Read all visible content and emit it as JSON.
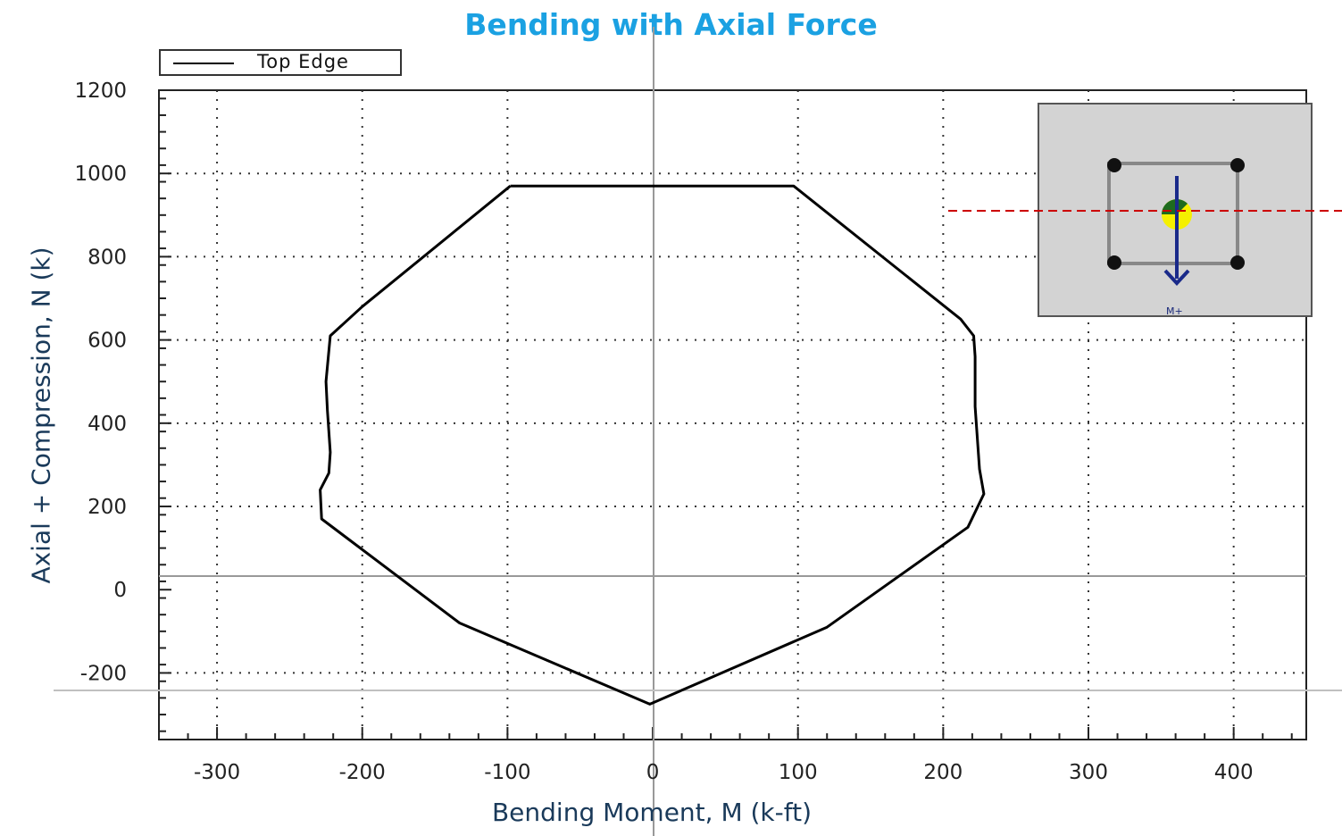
{
  "chart_data": {
    "type": "line",
    "title": "Bending with Axial Force",
    "xlabel": "Bending Moment, M (k-ft)",
    "ylabel": "Axial + Compression, N (k)",
    "xlim": [
      -340,
      450
    ],
    "ylim": [
      -360,
      1200
    ],
    "x_ticks": [
      -300,
      -200,
      -100,
      0,
      100,
      200,
      300,
      400
    ],
    "y_ticks": [
      -200,
      0,
      200,
      400,
      600,
      800,
      1000,
      1200
    ],
    "grid": true,
    "legend": {
      "placement": "top-left",
      "entries": [
        "Top Edge"
      ]
    },
    "series": [
      {
        "name": "Top Edge",
        "color": "#000000",
        "x": [
          -98,
          -200,
          -222,
          -225,
          -224,
          -222,
          -223,
          -229,
          -228,
          -133,
          -2,
          120,
          217,
          228,
          225,
          222,
          222,
          221,
          212,
          97,
          -98
        ],
        "y": [
          970,
          680,
          610,
          500,
          430,
          330,
          280,
          240,
          170,
          -80,
          -275,
          -90,
          150,
          230,
          290,
          440,
          560,
          610,
          650,
          970,
          970
        ]
      }
    ]
  },
  "inset": {
    "moment_label": "M+",
    "colors": {
      "rebar": "#111111",
      "neutral_axis": "#cc0000",
      "arrow": "#1a2a8a",
      "centroid": "#1e6b1e",
      "highlight": "#f5f000"
    }
  }
}
